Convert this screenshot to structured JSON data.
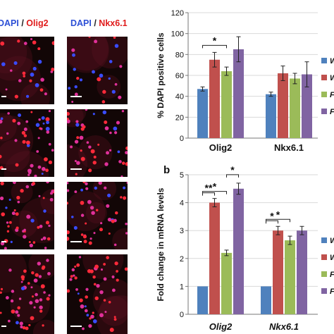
{
  "figure": {
    "panel_label_b": "b",
    "columns": [
      {
        "stain1": "DAPI",
        "slash": " / ",
        "stain2": "Olig2"
      },
      {
        "stain1": "DAPI",
        "slash": " / ",
        "stain2": "Nkx6.1"
      }
    ],
    "colors": {
      "dapi_blue": "#2c4fd6",
      "marker_red": "#e01b1b"
    }
  },
  "chart_data": [
    {
      "type": "bar",
      "title": "",
      "xlabel": "",
      "ylabel": "% DAPI positive cells",
      "categories": [
        "Olig2",
        "Nkx6.1"
      ],
      "ylim": [
        0,
        120
      ],
      "yticks": [
        0,
        20,
        40,
        60,
        80,
        100,
        120
      ],
      "grid": true,
      "legend": "right (cropped)",
      "legend_labels": [
        "W",
        "W",
        "F",
        "F"
      ],
      "series": [
        {
          "values": [
            47,
            42
          ],
          "errors": [
            2,
            2
          ],
          "color": "#4f81bd"
        },
        {
          "values": [
            75,
            62
          ],
          "errors": [
            7,
            7
          ],
          "color": "#c0504d"
        },
        {
          "values": [
            64,
            57
          ],
          "errors": [
            4,
            5
          ],
          "color": "#9bbb59"
        },
        {
          "values": [
            85,
            61
          ],
          "errors": [
            12,
            12
          ],
          "color": "#8064a2"
        }
      ],
      "significance": [
        {
          "from_series": 0,
          "to_series": 2,
          "category": 0,
          "label": "*"
        }
      ]
    },
    {
      "type": "bar",
      "title": "",
      "xlabel": "",
      "ylabel": "Fold change in mRNA levels",
      "categories": [
        "Olig2",
        "Nkx6.1"
      ],
      "ylim": [
        0,
        5
      ],
      "yticks": [
        0,
        1,
        2,
        3,
        4,
        5
      ],
      "grid": true,
      "legend": "right (cropped)",
      "legend_labels": [
        "W",
        "W",
        "Fk",
        "Fk"
      ],
      "series": [
        {
          "values": [
            1,
            1
          ],
          "errors": [
            0,
            0
          ],
          "color": "#4f81bd"
        },
        {
          "values": [
            4.0,
            3.0
          ],
          "errors": [
            0.15,
            0.15
          ],
          "color": "#c0504d"
        },
        {
          "values": [
            2.2,
            2.65
          ],
          "errors": [
            0.1,
            0.15
          ],
          "color": "#9bbb59"
        },
        {
          "values": [
            4.5,
            3.0
          ],
          "errors": [
            0.2,
            0.15
          ],
          "color": "#8064a2"
        }
      ],
      "significance": [
        {
          "from_series": 0,
          "to_series": 1,
          "category": 0,
          "label": "**"
        },
        {
          "from_series": 0,
          "to_series": 2,
          "category": 0,
          "label": "*"
        },
        {
          "from_series": 2,
          "to_series": 3,
          "category": 0,
          "label": "*"
        },
        {
          "from_series": 0,
          "to_series": 1,
          "category": 1,
          "label": "*"
        },
        {
          "from_series": 0,
          "to_series": 2,
          "category": 1,
          "label": "*"
        }
      ]
    }
  ]
}
